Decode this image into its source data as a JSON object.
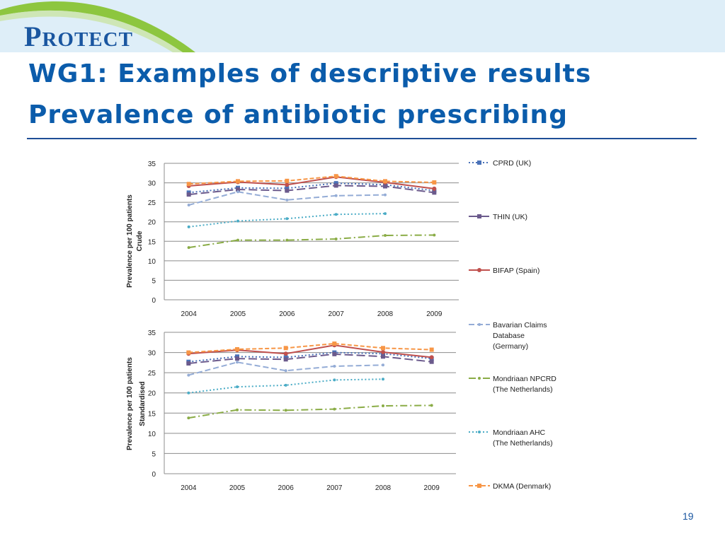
{
  "slide": {
    "logo_text": "PROTECT",
    "title_line1": "WG1: Examples of descriptive results",
    "title_line2": "Prevalence of antibiotic prescribing",
    "page_number": "19"
  },
  "colors": {
    "title": "#0b5cab",
    "header_band": "#deeef8",
    "swoosh_green": "#8dc63f"
  },
  "chart_data": [
    {
      "type": "line",
      "title": "",
      "ylabel": "Prevalence per 100 patients",
      "ylabel2": "Crude",
      "xlabel": "",
      "x": [
        "2004",
        "2005",
        "2006",
        "2007",
        "2008",
        "2009"
      ],
      "ylim": [
        0,
        35
      ],
      "yticks": [
        0,
        5,
        10,
        15,
        20,
        25,
        30,
        35
      ],
      "grid": true,
      "legend": "right",
      "series": [
        {
          "name": "CPRD (UK)",
          "color": "#4a72b8",
          "dash": "2,3",
          "marker": "square",
          "values": [
            27.5,
            28.7,
            28.6,
            29.9,
            29.5,
            28.0
          ]
        },
        {
          "name": "THIN (UK)",
          "color": "#6b5a8c",
          "dash": "12,5",
          "marker": "square",
          "values": [
            27.0,
            28.3,
            28.0,
            29.3,
            29.1,
            27.5
          ]
        },
        {
          "name": "BIFAP (Spain)",
          "color": "#c0504d",
          "dash": "",
          "marker": "circle",
          "values": [
            29.2,
            30.2,
            29.5,
            31.5,
            30.1,
            28.5
          ]
        },
        {
          "name": "Bavarian Claims Database (Germany)",
          "color": "#94acd6",
          "dash": "8,4",
          "marker": "dot",
          "values": [
            24.3,
            27.7,
            25.6,
            26.7,
            26.9,
            null
          ]
        },
        {
          "name": "Mondriaan NPCRD (The Netherlands)",
          "color": "#8aac46",
          "dash": "10,4,2,4",
          "marker": "dot",
          "values": [
            13.4,
            15.3,
            15.3,
            15.6,
            16.5,
            16.6
          ]
        },
        {
          "name": "Mondriaan AHC (The Netherlands)",
          "color": "#4bacc6",
          "dash": "2,3",
          "marker": "dot",
          "values": [
            18.7,
            20.2,
            20.8,
            21.9,
            22.1,
            null
          ]
        },
        {
          "name": "DKMA (Denmark)",
          "color": "#f79646",
          "dash": "6,3",
          "marker": "square",
          "values": [
            29.7,
            30.4,
            30.5,
            31.7,
            30.4,
            30.1
          ]
        }
      ]
    },
    {
      "type": "line",
      "title": "",
      "ylabel": "Prevalence per 100 patients",
      "ylabel2": "Standardised",
      "xlabel": "",
      "x": [
        "2004",
        "2005",
        "2006",
        "2007",
        "2008",
        "2009"
      ],
      "ylim": [
        0,
        35
      ],
      "yticks": [
        0,
        5,
        10,
        15,
        20,
        25,
        30,
        35
      ],
      "grid": true,
      "legend": "right",
      "series": [
        {
          "name": "CPRD (UK)",
          "color": "#4a72b8",
          "dash": "2,3",
          "marker": "square",
          "values": [
            27.7,
            29.0,
            28.8,
            30.0,
            29.7,
            28.5
          ]
        },
        {
          "name": "THIN (UK)",
          "color": "#6b5a8c",
          "dash": "12,5",
          "marker": "square",
          "values": [
            27.3,
            28.5,
            28.3,
            29.6,
            29.0,
            27.7
          ]
        },
        {
          "name": "BIFAP (Spain)",
          "color": "#c0504d",
          "dash": "",
          "marker": "circle",
          "values": [
            29.7,
            30.6,
            29.7,
            31.8,
            30.1,
            28.8
          ]
        },
        {
          "name": "Bavarian Claims Database (Germany)",
          "color": "#94acd6",
          "dash": "8,4",
          "marker": "dot",
          "values": [
            24.4,
            27.6,
            25.5,
            26.6,
            26.9,
            null
          ]
        },
        {
          "name": "Mondriaan NPCRD (The Netherlands)",
          "color": "#8aac46",
          "dash": "10,4,2,4",
          "marker": "dot",
          "values": [
            13.8,
            15.8,
            15.7,
            16.0,
            16.8,
            16.9
          ]
        },
        {
          "name": "Mondriaan AHC (The Netherlands)",
          "color": "#4bacc6",
          "dash": "2,3",
          "marker": "dot",
          "values": [
            20.0,
            21.5,
            21.9,
            23.2,
            23.4,
            null
          ]
        },
        {
          "name": "DKMA (Denmark)",
          "color": "#f79646",
          "dash": "6,3",
          "marker": "square",
          "values": [
            30.0,
            30.8,
            31.1,
            32.2,
            31.1,
            30.7
          ]
        }
      ]
    }
  ],
  "legend": [
    {
      "lines": [
        "CPRD (UK)"
      ],
      "series": 0
    },
    {
      "lines": [
        "THIN (UK)"
      ],
      "series": 1
    },
    {
      "lines": [
        "BIFAP (Spain)"
      ],
      "series": 2
    },
    {
      "lines": [
        "Bavarian Claims",
        "Database",
        "(Germany)"
      ],
      "series": 3
    },
    {
      "lines": [
        "Mondriaan NPCRD",
        "(The Netherlands)"
      ],
      "series": 4
    },
    {
      "lines": [
        "Mondriaan AHC",
        "(The Netherlands)"
      ],
      "series": 5
    },
    {
      "lines": [
        "DKMA (Denmark)"
      ],
      "series": 6
    }
  ]
}
